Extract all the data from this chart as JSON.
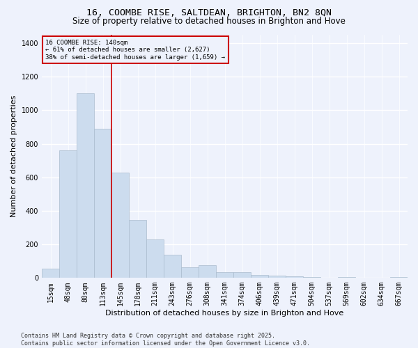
{
  "title_line1": "16, COOMBE RISE, SALTDEAN, BRIGHTON, BN2 8QN",
  "title_line2": "Size of property relative to detached houses in Brighton and Hove",
  "xlabel": "Distribution of detached houses by size in Brighton and Hove",
  "ylabel": "Number of detached properties",
  "categories": [
    "15sqm",
    "48sqm",
    "80sqm",
    "113sqm",
    "145sqm",
    "178sqm",
    "211sqm",
    "243sqm",
    "276sqm",
    "308sqm",
    "341sqm",
    "374sqm",
    "406sqm",
    "439sqm",
    "471sqm",
    "504sqm",
    "537sqm",
    "569sqm",
    "602sqm",
    "634sqm",
    "667sqm"
  ],
  "values": [
    55,
    760,
    1100,
    890,
    630,
    345,
    230,
    140,
    65,
    75,
    35,
    35,
    20,
    15,
    10,
    5,
    0,
    5,
    0,
    0,
    5
  ],
  "bar_color": "#ccdcee",
  "bar_edge_color": "#aabcce",
  "vline_color": "#cc0000",
  "annotation_title": "16 COOMBE RISE: 140sqm",
  "annotation_line2": "← 61% of detached houses are smaller (2,627)",
  "annotation_line3": "38% of semi-detached houses are larger (1,659) →",
  "annotation_box_color": "#cc0000",
  "annotation_text_color": "#000000",
  "ylim": [
    0,
    1450
  ],
  "yticks": [
    0,
    200,
    400,
    600,
    800,
    1000,
    1200,
    1400
  ],
  "footnote_line1": "Contains HM Land Registry data © Crown copyright and database right 2025.",
  "footnote_line2": "Contains public sector information licensed under the Open Government Licence v3.0.",
  "bg_color": "#eef2fc",
  "plot_bg_color": "#eef2fc",
  "grid_color": "#ffffff",
  "title_fontsize": 9.5,
  "subtitle_fontsize": 8.5,
  "axis_label_fontsize": 8,
  "tick_fontsize": 7,
  "footnote_fontsize": 6
}
